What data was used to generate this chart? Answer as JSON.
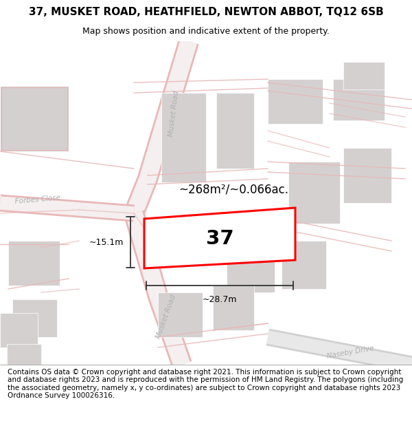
{
  "title": "37, MUSKET ROAD, HEATHFIELD, NEWTON ABBOT, TQ12 6SB",
  "subtitle": "Map shows position and indicative extent of the property.",
  "footer": "Contains OS data © Crown copyright and database right 2021. This information is subject to Crown copyright and database rights 2023 and is reproduced with the permission of HM Land Registry. The polygons (including the associated geometry, namely x, y co-ordinates) are subject to Crown copyright and database rights 2023 Ordnance Survey 100026316.",
  "map_bg": "#f0eeee",
  "building_color": "#d4d0d0",
  "building_edge": "#ffffff",
  "road_fill": "#f5efef",
  "road_edge": "#e8b8b8",
  "property_color": "#ff0000",
  "property_fill": "#ffffff",
  "dim_line_color": "#333333",
  "area_text": "~268m²/~0.066ac.",
  "number_text": "37",
  "width_label": "~28.7m",
  "height_label": "~15.1m",
  "title_fontsize": 11,
  "subtitle_fontsize": 9,
  "footer_fontsize": 7.5,
  "map_label_color": "#aaaaaa",
  "road_label_color": "#b0b0b0"
}
